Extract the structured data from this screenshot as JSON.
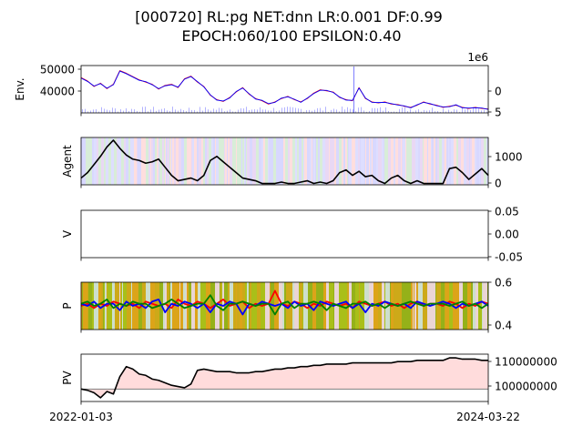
{
  "title_line1": "[000720] RL:pg NET:dnn LR:0.001 DF:0.99",
  "title_line2": "EPOCH:060/100 EPSILON:0.40",
  "x_start_label": "2022-01-03",
  "x_end_label": "2024-03-22",
  "chart_data": [
    {
      "type": "line",
      "ylabel": "Env.",
      "yticks_left": [
        "40000",
        "50000"
      ],
      "yticks_right": [
        "0",
        "5"
      ],
      "right_offset_label": "1e6",
      "ylim": [
        31000,
        52500
      ],
      "series": [
        {
          "color": "#ff0000",
          "values": [
            47000,
            45500,
            43000,
            44500,
            42000,
            44000,
            50200,
            49000,
            47500,
            46000,
            45000,
            44000,
            41800,
            43500,
            44000,
            42500,
            46500,
            47700,
            45000,
            43000,
            39000,
            37000,
            36200,
            38000,
            40500,
            42500,
            39500,
            37500,
            36500,
            35000,
            36000,
            37500,
            38500,
            37000,
            36000,
            37500,
            40000,
            41500,
            41000,
            40500,
            38000,
            37000,
            36500,
            42500,
            37500,
            36000,
            35500,
            36000,
            35000,
            34800,
            34000,
            33500,
            34500,
            36000,
            35000,
            34500,
            33500,
            34000,
            34500,
            33500,
            33000,
            33500,
            33000,
            32800
          ]
        },
        {
          "color": "#0000ff",
          "values": [
            46800,
            45300,
            43200,
            44300,
            42200,
            43800,
            50000,
            48800,
            47300,
            45800,
            45200,
            43800,
            42000,
            43300,
            43800,
            42700,
            46300,
            47500,
            45200,
            42800,
            39200,
            36800,
            36400,
            37800,
            40700,
            42300,
            39700,
            37300,
            36700,
            35200,
            35800,
            37700,
            38300,
            37200,
            35800,
            37700,
            39800,
            41300,
            41200,
            40300,
            38200,
            36800,
            36700,
            42300,
            37700,
            35800,
            35700,
            35800,
            35200,
            34600,
            34200,
            33300,
            34700,
            35800,
            35200,
            34300,
            33700,
            33800,
            34700,
            33300,
            33200,
            33300,
            33200,
            32600
          ]
        }
      ],
      "volume_spike_position": 0.67
    },
    {
      "type": "line",
      "ylabel": "Agent",
      "yticks_right": [
        "0",
        "1000"
      ],
      "ylim": [
        -50,
        1700
      ],
      "series": [
        {
          "color": "#000000",
          "values": [
            200,
            400,
            700,
            1000,
            1350,
            1600,
            1300,
            1050,
            900,
            850,
            750,
            800,
            900,
            600,
            300,
            100,
            150,
            200,
            100,
            300,
            850,
            1000,
            800,
            600,
            400,
            200,
            150,
            100,
            0,
            0,
            0,
            50,
            0,
            0,
            50,
            100,
            0,
            50,
            0,
            100,
            400,
            500,
            300,
            450,
            250,
            300,
            100,
            0,
            200,
            300,
            100,
            0,
            100,
            0,
            0,
            0,
            0,
            550,
            600,
            400,
            150,
            350,
            550,
            300
          ]
        }
      ]
    },
    {
      "type": "line",
      "ylabel": "V",
      "yticks_right": [
        "0.05",
        "0.00",
        "-0.05"
      ],
      "ylim": [
        -0.0625,
        0.0625
      ],
      "series": []
    },
    {
      "type": "line",
      "ylabel": "P",
      "yticks_right": [
        "0.6",
        "0.4"
      ],
      "ylim": [
        0.38,
        0.6
      ],
      "series": [
        {
          "color": "#ff0000",
          "values": [
            0.49,
            0.5,
            0.48,
            0.5,
            0.49,
            0.51,
            0.5,
            0.49,
            0.5,
            0.48,
            0.51,
            0.5,
            0.49,
            0.5,
            0.48,
            0.52,
            0.5,
            0.49,
            0.51,
            0.5,
            0.48,
            0.5,
            0.52,
            0.49,
            0.5,
            0.51,
            0.48,
            0.5,
            0.49,
            0.5,
            0.56,
            0.5,
            0.49,
            0.51,
            0.5,
            0.48,
            0.5,
            0.49,
            0.51,
            0.5,
            0.49,
            0.5,
            0.48,
            0.51,
            0.5,
            0.49,
            0.5,
            0.51,
            0.49,
            0.5,
            0.48,
            0.5,
            0.51,
            0.49,
            0.5,
            0.5,
            0.49,
            0.51,
            0.5,
            0.48,
            0.5,
            0.49,
            0.51,
            0.5
          ]
        },
        {
          "color": "#0000ff",
          "values": [
            0.5,
            0.49,
            0.51,
            0.48,
            0.5,
            0.5,
            0.47,
            0.51,
            0.49,
            0.5,
            0.48,
            0.51,
            0.52,
            0.46,
            0.5,
            0.49,
            0.51,
            0.5,
            0.48,
            0.5,
            0.46,
            0.5,
            0.49,
            0.51,
            0.5,
            0.45,
            0.5,
            0.49,
            0.51,
            0.5,
            0.49,
            0.5,
            0.48,
            0.51,
            0.49,
            0.5,
            0.47,
            0.51,
            0.5,
            0.49,
            0.5,
            0.51,
            0.48,
            0.5,
            0.46,
            0.5,
            0.49,
            0.51,
            0.5,
            0.49,
            0.5,
            0.48,
            0.51,
            0.5,
            0.49,
            0.5,
            0.51,
            0.5,
            0.48,
            0.5,
            0.49,
            0.5,
            0.51,
            0.49
          ]
        },
        {
          "color": "#008000",
          "values": [
            0.5,
            0.51,
            0.49,
            0.5,
            0.52,
            0.48,
            0.5,
            0.49,
            0.51,
            0.5,
            0.5,
            0.48,
            0.49,
            0.5,
            0.52,
            0.5,
            0.48,
            0.49,
            0.5,
            0.5,
            0.54,
            0.49,
            0.47,
            0.5,
            0.5,
            0.51,
            0.5,
            0.49,
            0.5,
            0.5,
            0.45,
            0.5,
            0.51,
            0.48,
            0.5,
            0.5,
            0.51,
            0.5,
            0.47,
            0.5,
            0.49,
            0.48,
            0.5,
            0.5,
            0.51,
            0.49,
            0.5,
            0.48,
            0.5,
            0.49,
            0.5,
            0.51,
            0.5,
            0.49,
            0.5,
            0.5,
            0.5,
            0.49,
            0.5,
            0.51,
            0.49,
            0.5,
            0.48,
            0.5
          ]
        }
      ]
    },
    {
      "type": "area",
      "ylabel": "PV",
      "yticks_right": [
        "100000000",
        "110000000"
      ],
      "baseline": 100000000,
      "ylim": [
        95000000,
        114000000
      ],
      "series": [
        {
          "color": "#000000",
          "values": [
            100000000,
            99500000,
            98500000,
            96500000,
            99000000,
            98000000,
            105000000,
            109000000,
            108000000,
            106000000,
            105500000,
            104000000,
            103500000,
            102500000,
            101500000,
            101000000,
            100500000,
            102000000,
            107500000,
            108000000,
            107500000,
            107000000,
            107000000,
            107000000,
            106500000,
            106500000,
            106500000,
            107000000,
            107000000,
            107500000,
            108000000,
            108000000,
            108500000,
            108500000,
            109000000,
            109000000,
            109500000,
            109500000,
            110000000,
            110000000,
            110000000,
            110000000,
            110500000,
            110500000,
            110500000,
            110500000,
            110500000,
            110500000,
            110500000,
            111000000,
            111000000,
            111000000,
            111500000,
            111500000,
            111500000,
            111500000,
            111500000,
            112500000,
            112500000,
            112000000,
            112000000,
            112000000,
            111500000,
            111500000
          ]
        }
      ]
    }
  ]
}
